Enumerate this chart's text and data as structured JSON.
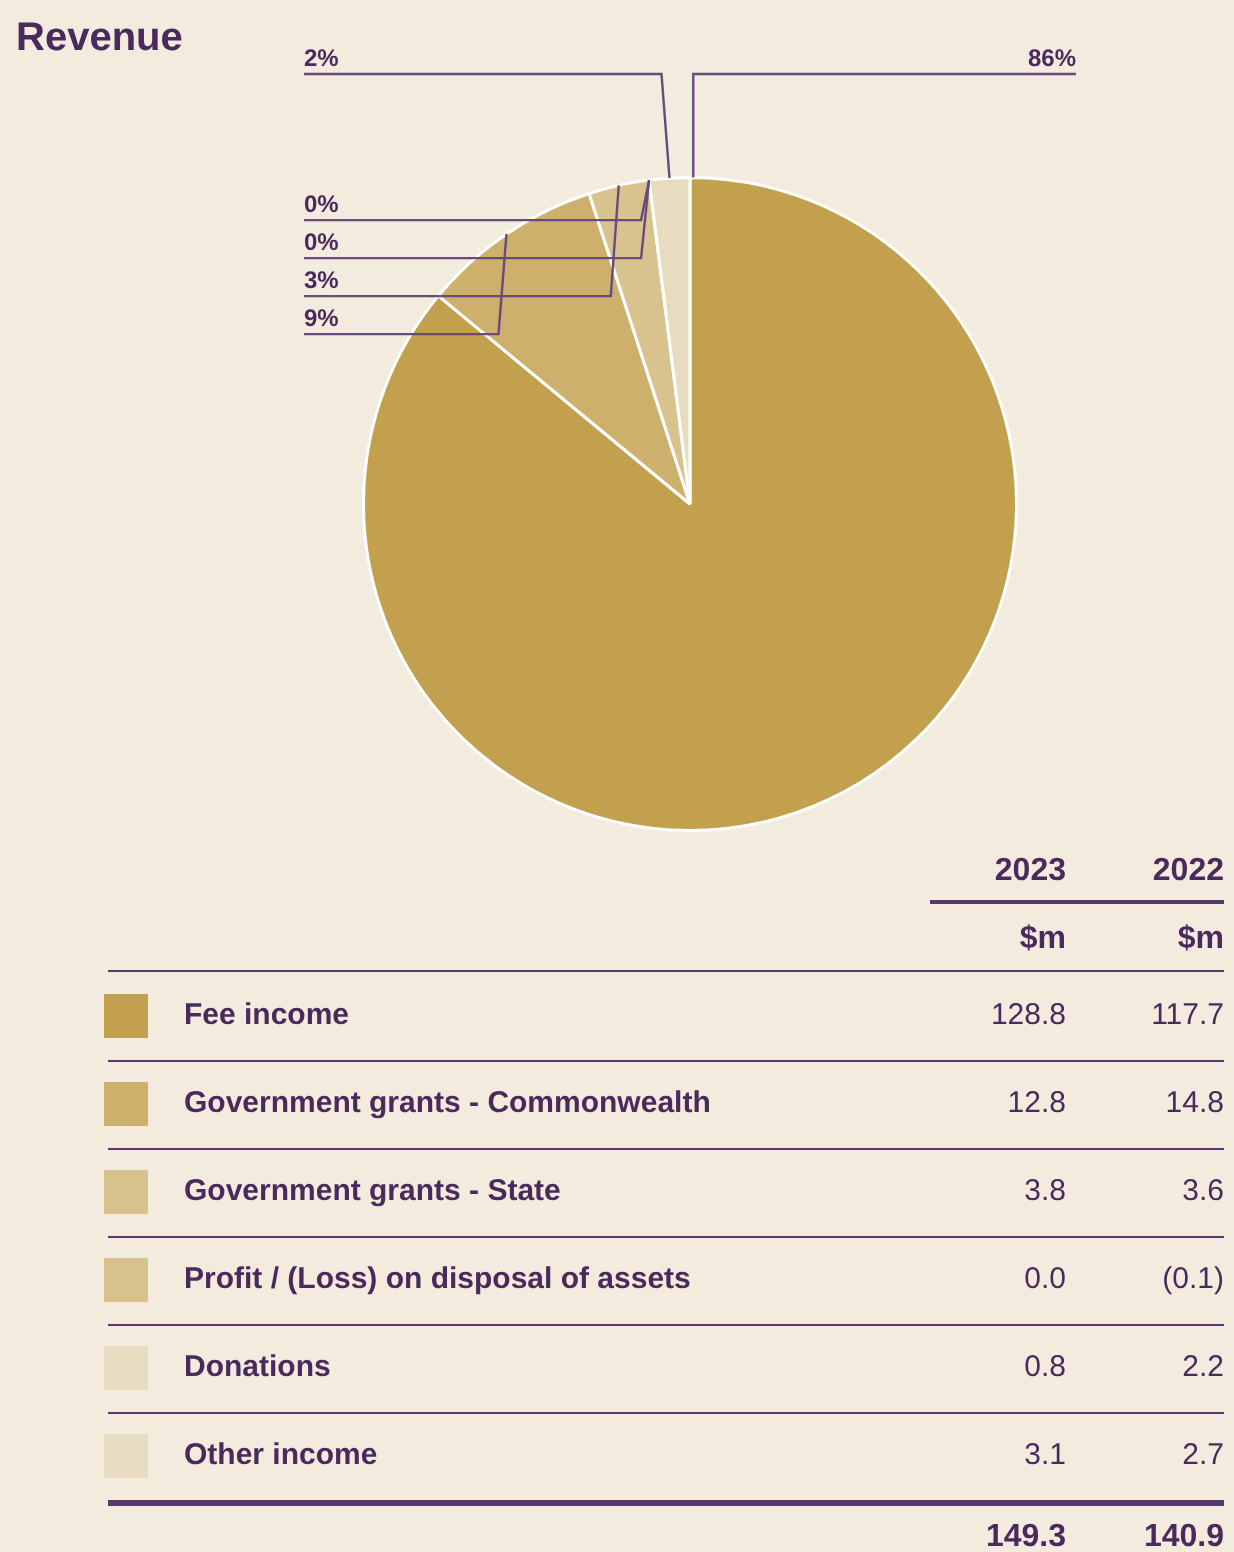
{
  "chart_data": [
    {
      "type": "pie",
      "title": "Revenue",
      "categories": [
        "Fee income",
        "Government grants - Commonwealth",
        "Government grants - State",
        "Profit / (Loss) on disposal of assets",
        "Donations",
        "Other income"
      ],
      "colors": [
        "#c2a04e",
        "#cdb06c",
        "#d8c28d",
        "#d8c28d",
        "#e8dcc0",
        "#e8dcc0"
      ],
      "values": [
        86,
        9,
        3,
        0,
        0,
        2
      ],
      "value_labels": [
        "86%",
        "9%",
        "3%",
        "0%",
        "0%",
        "2%"
      ],
      "data_labels": true,
      "legend": "bottom"
    },
    {
      "type": "other",
      "annotations": [
        "2023",
        "$m",
        "128.8",
        "12.8",
        "3.8",
        "0.0",
        "0.8",
        "3.1",
        "149.3",
        "2022",
        "$m",
        "117.7",
        "14.8",
        "3.6",
        "(0.1)",
        "2.2",
        "2.7",
        "140.9"
      ]
    }
  ]
}
